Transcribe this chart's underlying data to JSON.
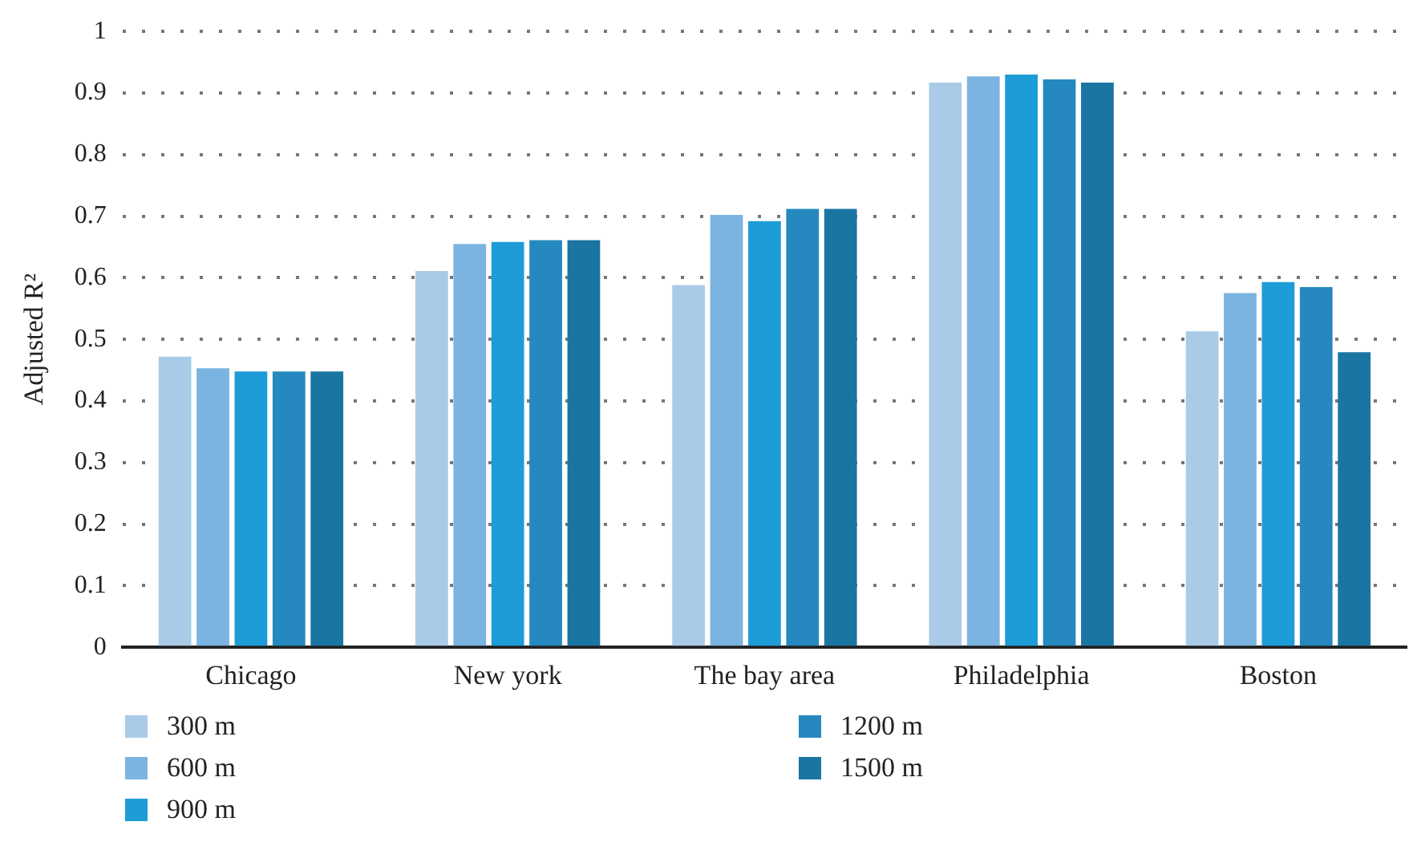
{
  "chart_data": {
    "type": "bar",
    "ylabel": "Adjusted R²",
    "categories": [
      "Chicago",
      "New york",
      "The bay area",
      "Philadelphia",
      "Boston"
    ],
    "series": [
      {
        "name": "300 m",
        "color": "#a9cbe7",
        "values": [
          0.472,
          0.611,
          0.588,
          0.917,
          0.513
        ]
      },
      {
        "name": "600 m",
        "color": "#7bb4e0",
        "values": [
          0.453,
          0.655,
          0.702,
          0.927,
          0.575
        ]
      },
      {
        "name": "900 m",
        "color": "#1e9cd7",
        "values": [
          0.448,
          0.658,
          0.692,
          0.93,
          0.593
        ]
      },
      {
        "name": "1200 m",
        "color": "#2589bf",
        "values": [
          0.448,
          0.661,
          0.712,
          0.922,
          0.585
        ]
      },
      {
        "name": "1500 m",
        "color": "#1a75a2",
        "values": [
          0.448,
          0.661,
          0.712,
          0.917,
          0.479
        ]
      }
    ],
    "ylim": [
      0,
      1
    ],
    "yticks": [
      0,
      0.1,
      0.2,
      0.3,
      0.4,
      0.5,
      0.6,
      0.7,
      0.8,
      0.9,
      1
    ],
    "grid": "y",
    "legend": "bottom"
  }
}
